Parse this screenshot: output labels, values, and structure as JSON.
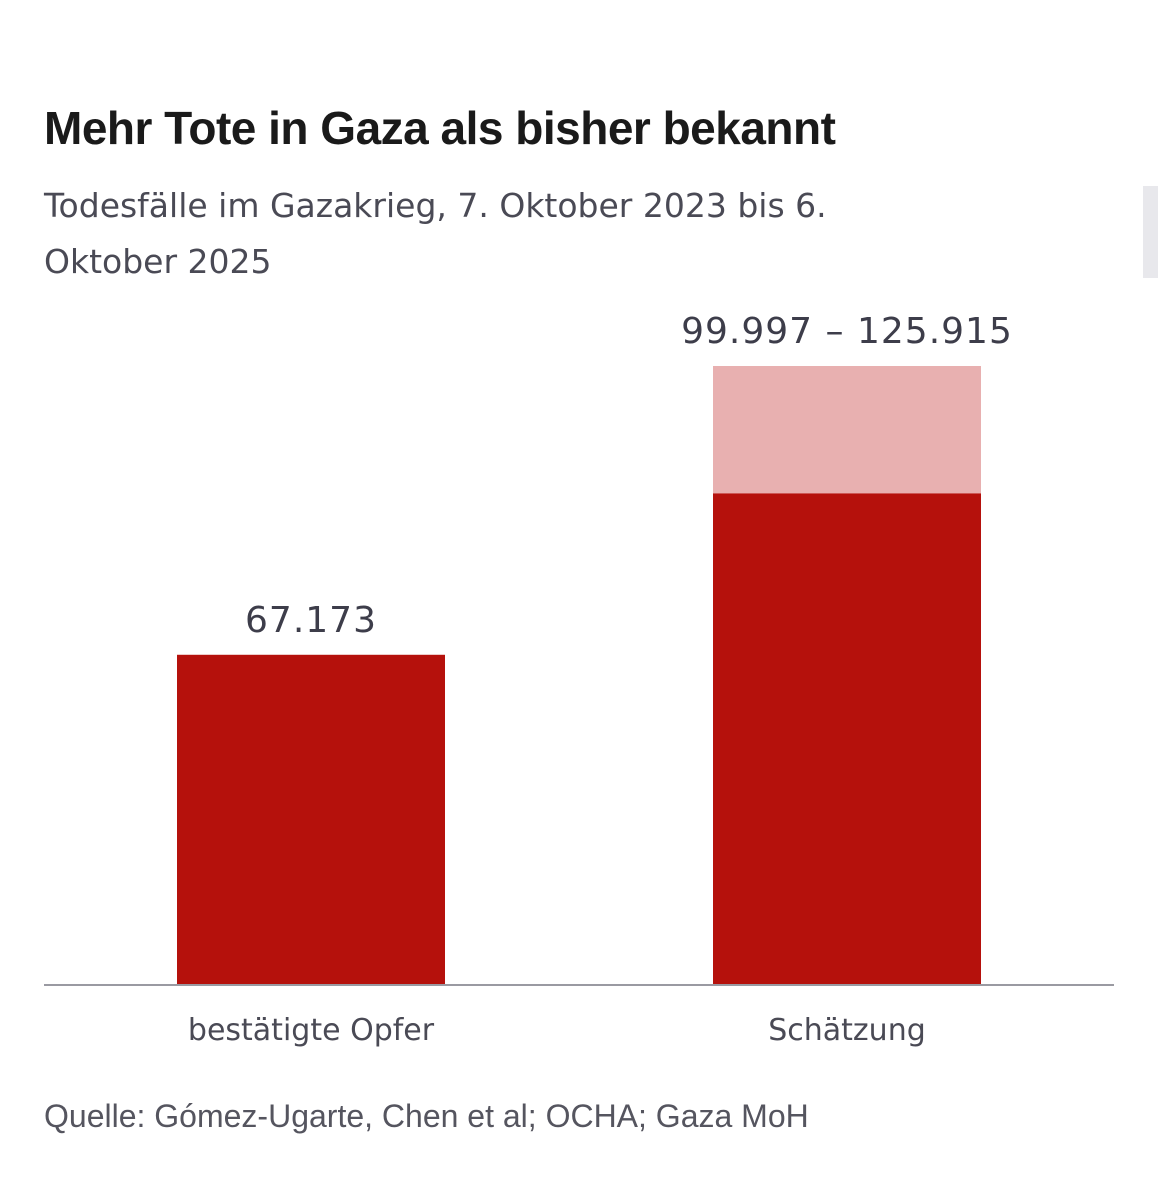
{
  "title": "Mehr Tote in Gaza als bisher bekannt",
  "subtitle": "Todesfälle im Gazakrieg, 7. Oktober 2023 bis 6. Oktober 2025",
  "source": "Quelle: Gómez-Ugarte, Chen et al; OCHA; Gaza MoH",
  "colors": {
    "primary": "#b5110c",
    "range": "#e8b0b0",
    "axis": "#9a9aa2",
    "text": "#1a1a1a"
  },
  "chart_data": {
    "type": "bar",
    "categories": [
      "bestätigte Opfer",
      "Schätzung"
    ],
    "bars": [
      {
        "category": "bestätigte Opfer",
        "value": 67173,
        "label": "67.173"
      },
      {
        "category": "Schätzung",
        "low": 99997,
        "high": 125915,
        "label": "99.997 – 125.915"
      }
    ],
    "ylim": [
      0,
      125915
    ],
    "grid": false,
    "legend": "none"
  }
}
